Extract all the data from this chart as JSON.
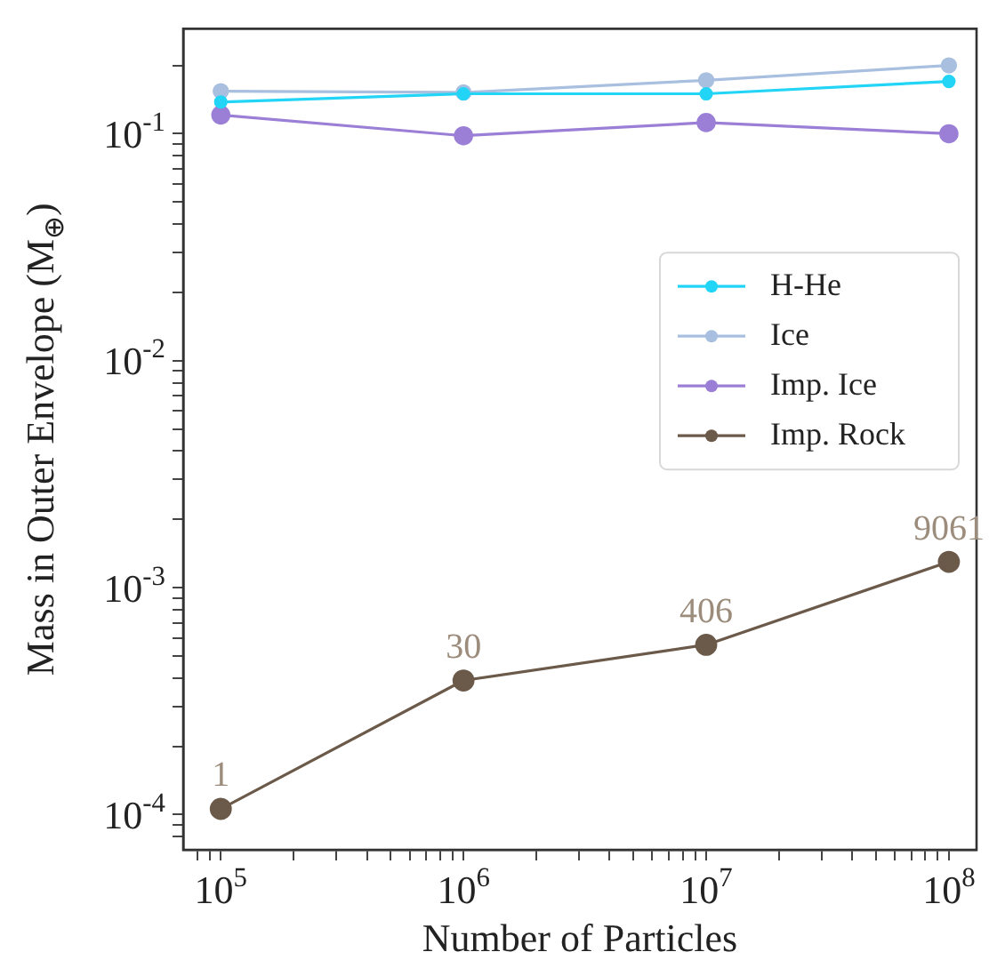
{
  "chart_data": {
    "type": "line",
    "xlabel": "Number of Particles",
    "ylabel": "Mass in Outer Envelope (M$_{⊕}$)",
    "x": [
      100000,
      1000000,
      10000000,
      100000000
    ],
    "series": [
      {
        "name": "H-He",
        "color": "#22d4f5",
        "values": [
          0.138,
          0.15,
          0.15,
          0.17
        ]
      },
      {
        "name": "Ice",
        "color": "#a9bfe0",
        "values": [
          0.154,
          0.152,
          0.172,
          0.2
        ]
      },
      {
        "name": "Imp. Ice",
        "color": "#9b7fd6",
        "values": [
          0.121,
          0.098,
          0.112,
          0.1
        ]
      },
      {
        "name": "Imp. Rock",
        "color": "#6b5949",
        "values": [
          0.000106,
          0.00039,
          0.00056,
          0.0013
        ]
      }
    ],
    "annotations": [
      {
        "text": "1",
        "x": 100000,
        "y": 0.000106
      },
      {
        "text": "30",
        "x": 1000000,
        "y": 0.00039
      },
      {
        "text": "406",
        "x": 10000000,
        "y": 0.00056
      },
      {
        "text": "9061",
        "x": 100000000,
        "y": 0.0013
      }
    ],
    "log": "xy",
    "marker": "circle",
    "line_style": "solid",
    "legend": "center right",
    "grid": false,
    "xlim": [
      70000,
      130000000
    ],
    "ylim": [
      7.3e-05,
      0.29
    ],
    "xticks": [
      {
        "value": 80000,
        "label": null
      },
      {
        "value": 90000,
        "label": null
      },
      {
        "value": 100000,
        "label": "10$^{5}$"
      },
      {
        "value": 200000,
        "label": null
      },
      {
        "value": 300000,
        "label": null
      },
      {
        "value": 400000,
        "label": null
      },
      {
        "value": 500000,
        "label": null
      },
      {
        "value": 600000,
        "label": null
      },
      {
        "value": 700000,
        "label": null
      },
      {
        "value": 800000,
        "label": null
      },
      {
        "value": 900000,
        "label": null
      },
      {
        "value": 1000000,
        "label": "10$^{6}$"
      },
      {
        "value": 2000000,
        "label": null
      },
      {
        "value": 3000000,
        "label": null
      },
      {
        "value": 4000000,
        "label": null
      },
      {
        "value": 5000000,
        "label": null
      },
      {
        "value": 6000000,
        "label": null
      },
      {
        "value": 7000000,
        "label": null
      },
      {
        "value": 8000000,
        "label": null
      },
      {
        "value": 9000000,
        "label": null
      },
      {
        "value": 10000000,
        "label": "10$^{7}$"
      },
      {
        "value": 20000000,
        "label": null
      },
      {
        "value": 30000000,
        "label": null
      },
      {
        "value": 40000000,
        "label": null
      },
      {
        "value": 50000000,
        "label": null
      },
      {
        "value": 60000000,
        "label": null
      },
      {
        "value": 70000000,
        "label": null
      },
      {
        "value": 80000000,
        "label": null
      },
      {
        "value": 90000000,
        "label": null
      },
      {
        "value": 100000000,
        "label": "10$^{8}$"
      }
    ],
    "yticks": [
      {
        "value": 8e-05,
        "label": null
      },
      {
        "value": 9e-05,
        "label": null
      },
      {
        "value": 0.0001,
        "label": "10$^{-4}$"
      },
      {
        "value": 0.0002,
        "label": null
      },
      {
        "value": 0.0003,
        "label": null
      },
      {
        "value": 0.0004,
        "label": null
      },
      {
        "value": 0.0005,
        "label": null
      },
      {
        "value": 0.0006,
        "label": null
      },
      {
        "value": 0.0007,
        "label": null
      },
      {
        "value": 0.0008,
        "label": null
      },
      {
        "value": 0.0009,
        "label": null
      },
      {
        "value": 0.001,
        "label": "10$^{-3}$"
      },
      {
        "value": 0.002,
        "label": null
      },
      {
        "value": 0.003,
        "label": null
      },
      {
        "value": 0.004,
        "label": null
      },
      {
        "value": 0.005,
        "label": null
      },
      {
        "value": 0.006,
        "label": null
      },
      {
        "value": 0.007,
        "label": null
      },
      {
        "value": 0.008,
        "label": null
      },
      {
        "value": 0.009,
        "label": null
      },
      {
        "value": 0.01,
        "label": "10$^{-2}$"
      },
      {
        "value": 0.02,
        "label": null
      },
      {
        "value": 0.03,
        "label": null
      },
      {
        "value": 0.04,
        "label": null
      },
      {
        "value": 0.05,
        "label": null
      },
      {
        "value": 0.06,
        "label": null
      },
      {
        "value": 0.07,
        "label": null
      },
      {
        "value": 0.08,
        "label": null
      },
      {
        "value": 0.09,
        "label": null
      },
      {
        "value": 0.1,
        "label": "10$^{-1}$"
      },
      {
        "value": 0.2,
        "label": null
      }
    ]
  }
}
